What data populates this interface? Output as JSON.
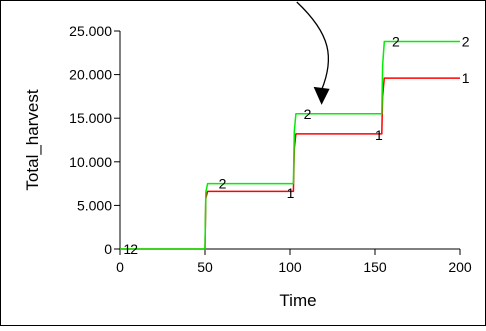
{
  "chart_data": {
    "type": "line",
    "title": "",
    "xlabel": "Time",
    "ylabel": "Total_harvest",
    "xlim": [
      0,
      200
    ],
    "ylim": [
      0,
      25000
    ],
    "x_ticks": [
      {
        "value": 0,
        "label": "0"
      },
      {
        "value": 50,
        "label": "50"
      },
      {
        "value": 100,
        "label": "100"
      },
      {
        "value": 150,
        "label": "150"
      },
      {
        "value": 200,
        "label": "200"
      }
    ],
    "y_ticks": [
      {
        "value": 0,
        "label": "0"
      },
      {
        "value": 5000,
        "label": "5.000"
      },
      {
        "value": 10000,
        "label": "10.000"
      },
      {
        "value": 15000,
        "label": "15.000"
      },
      {
        "value": 20000,
        "label": "20.000"
      },
      {
        "value": 25000,
        "label": "25.000"
      }
    ],
    "grid": false,
    "series": [
      {
        "id": "1",
        "color": "#ff0000",
        "x": [
          0,
          50,
          50.5,
          51.5,
          102,
          102.5,
          103.5,
          154,
          154.5,
          155.5,
          200
        ],
        "y": [
          0,
          0,
          5800,
          6600,
          6600,
          11500,
          13200,
          13200,
          17500,
          19600,
          19600
        ],
        "markers": [
          {
            "x": 2,
            "y": 0,
            "label": "1"
          },
          {
            "x": 98,
            "y": 6400,
            "label": "1"
          },
          {
            "x": 150,
            "y": 13100,
            "label": "1"
          },
          {
            "x": 201,
            "y": 19600,
            "label": "1"
          }
        ]
      },
      {
        "id": "2",
        "color": "#00ee00",
        "x": [
          0,
          50,
          50.5,
          51.5,
          102,
          102.5,
          103.5,
          154,
          154.5,
          155.5,
          200
        ],
        "y": [
          0,
          0,
          6500,
          7500,
          7500,
          13500,
          15500,
          15500,
          21000,
          23800,
          23800
        ],
        "markers": [
          {
            "x": 6,
            "y": 0,
            "label": "2"
          },
          {
            "x": 58,
            "y": 7500,
            "label": "2"
          },
          {
            "x": 108,
            "y": 15500,
            "label": "2"
          },
          {
            "x": 160,
            "y": 23800,
            "label": "2"
          },
          {
            "x": 201,
            "y": 23800,
            "label": "2"
          }
        ]
      }
    ],
    "annotations": [
      {
        "type": "curved-arrow",
        "from": {
          "x": 104,
          "y": 38000
        },
        "to": {
          "x": 118,
          "y": 15500
        }
      }
    ]
  }
}
